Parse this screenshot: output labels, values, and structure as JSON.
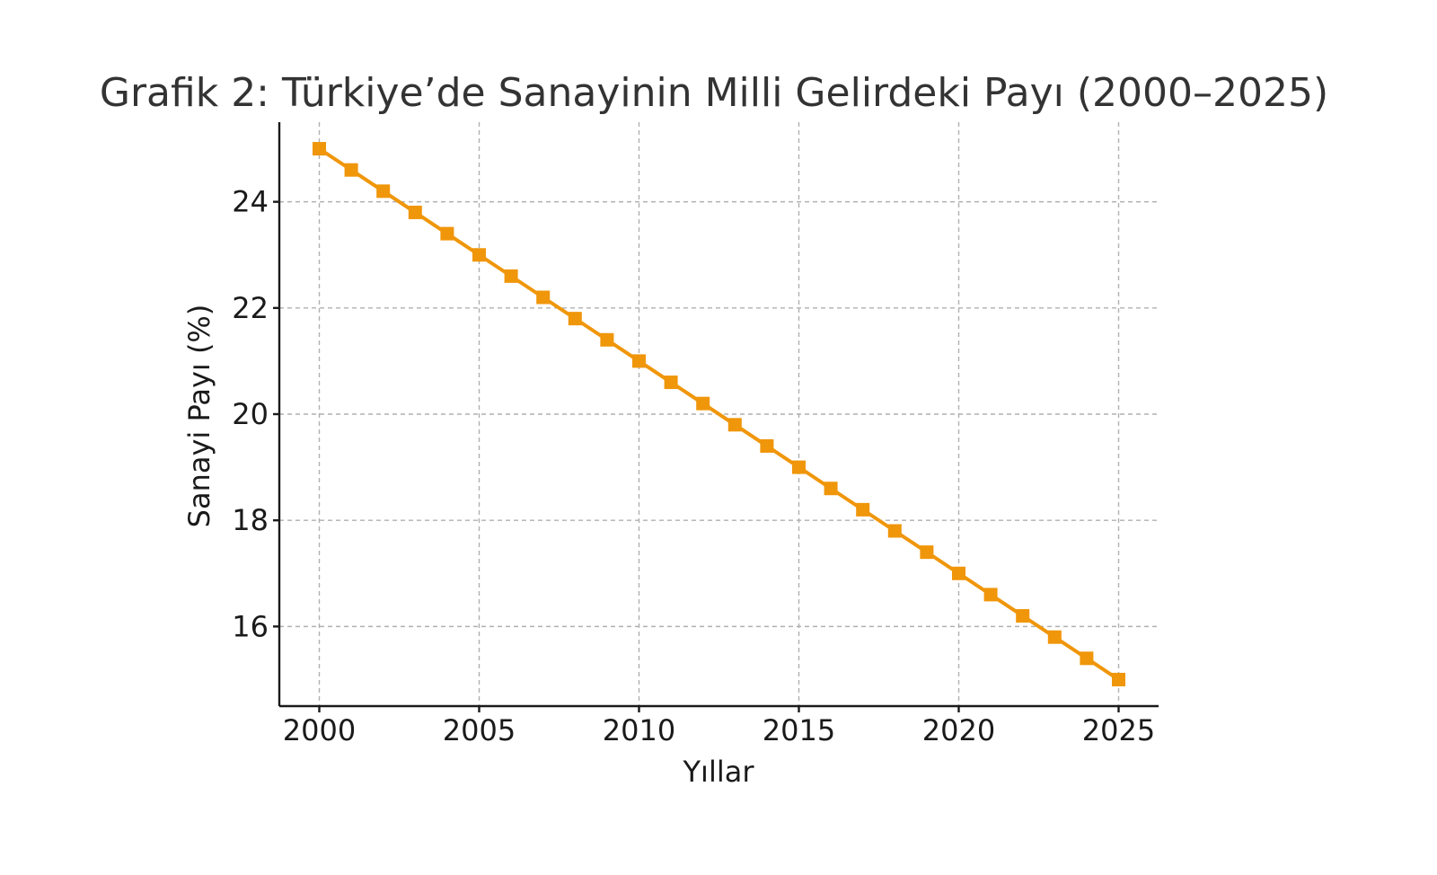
{
  "chart_data": {
    "type": "line",
    "title": "Grafik 2: Türkiye’de Sanayinin Milli Gelirdeki Payı (2000–2025)",
    "xlabel": "Yıllar",
    "ylabel": "Sanayi Payı (%)",
    "x": [
      2000,
      2001,
      2002,
      2003,
      2004,
      2005,
      2006,
      2007,
      2008,
      2009,
      2010,
      2011,
      2012,
      2013,
      2014,
      2015,
      2016,
      2017,
      2018,
      2019,
      2020,
      2021,
      2022,
      2023,
      2024,
      2025
    ],
    "series": [
      {
        "values": [
          25.0,
          24.6,
          24.2,
          23.8,
          23.4,
          23.0,
          22.6,
          22.2,
          21.8,
          21.4,
          21.0,
          20.6,
          20.2,
          19.8,
          19.4,
          19.0,
          18.6,
          18.2,
          17.8,
          17.4,
          17.0,
          16.6,
          16.2,
          15.8,
          15.4,
          15.0
        ],
        "color": "#f0960a",
        "marker": "square"
      }
    ],
    "xticks": [
      2000,
      2005,
      2010,
      2015,
      2020,
      2025
    ],
    "yticks": [
      16,
      18,
      20,
      22,
      24
    ],
    "xlim": [
      1998.75,
      2026.25
    ],
    "ylim": [
      14.5,
      25.5
    ],
    "grid": true,
    "legend": "none"
  }
}
